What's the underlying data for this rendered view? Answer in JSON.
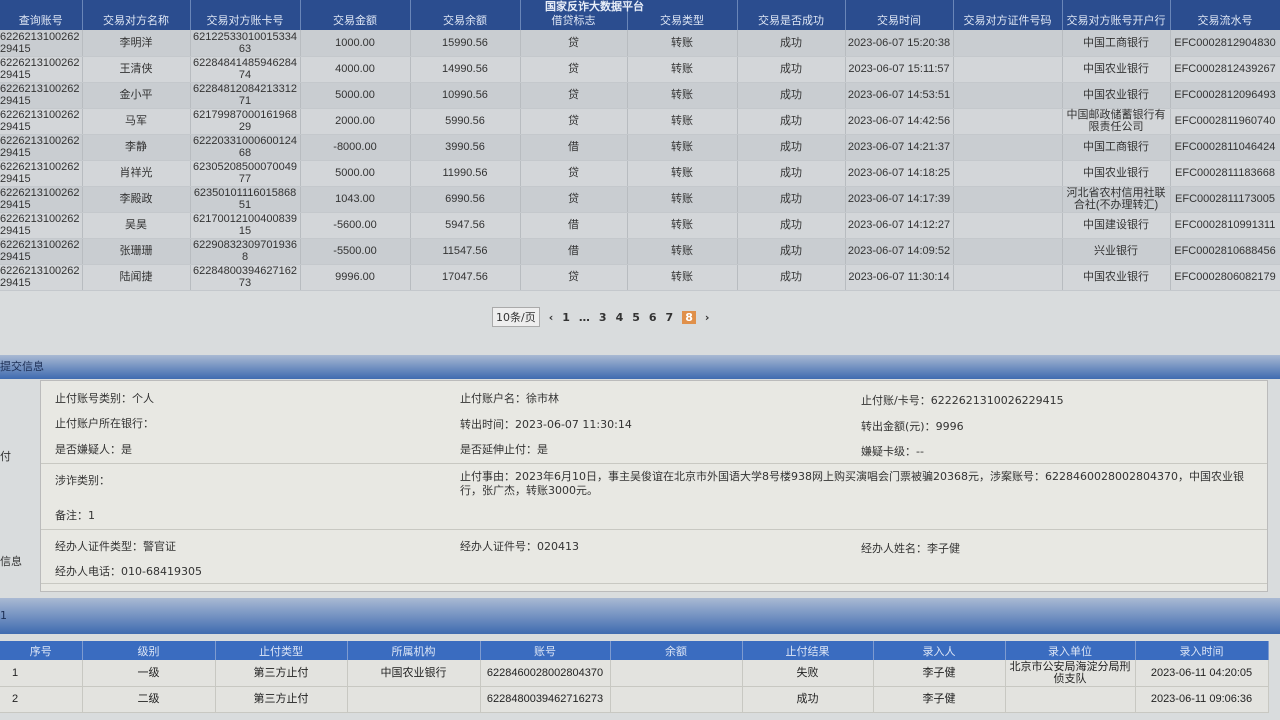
{
  "page_title": "国家反诈大数据平台",
  "tx_table": {
    "headers": [
      "查询账号",
      "交易对方名称",
      "交易对方账卡号",
      "交易金额",
      "交易余额",
      "借贷标志",
      "交易类型",
      "交易是否成功",
      "交易时间",
      "交易对方证件号码",
      "交易对方账号开户行",
      "交易流水号"
    ],
    "rows": [
      [
        "6226213100262 29415",
        "李明洋",
        "6212253301001533463",
        "1000.00",
        "15990.56",
        "贷",
        "转账",
        "成功",
        "2023-06-07 15:20:38",
        "",
        "中国工商银行",
        "EFC0002812904830"
      ],
      [
        "6226213100262 29415",
        "王清侠",
        "6228484148594628474",
        "4000.00",
        "14990.56",
        "贷",
        "转账",
        "成功",
        "2023-06-07 15:11:57",
        "",
        "中国农业银行",
        "EFC0002812439267"
      ],
      [
        "6226213100262 29415",
        "金小平",
        "6228481208421331271",
        "5000.00",
        "10990.56",
        "贷",
        "转账",
        "成功",
        "2023-06-07 14:53:51",
        "",
        "中国农业银行",
        "EFC0002812096493"
      ],
      [
        "6226213100262 29415",
        "马军",
        "6217998700016196829",
        "2000.00",
        "5990.56",
        "贷",
        "转账",
        "成功",
        "2023-06-07 14:42:56",
        "",
        "中国邮政储蓄银行有限责任公司",
        "EFC0002811960740"
      ],
      [
        "6226213100262 29415",
        "李静",
        "6222033100060012468",
        "-8000.00",
        "3990.56",
        "借",
        "转账",
        "成功",
        "2023-06-07 14:21:37",
        "",
        "中国工商银行",
        "EFC0002811046424"
      ],
      [
        "6226213100262 29415",
        "肖祥光",
        "6230520850007004977",
        "5000.00",
        "11990.56",
        "贷",
        "转账",
        "成功",
        "2023-06-07 14:18:25",
        "",
        "中国农业银行",
        "EFC0002811183668"
      ],
      [
        "6226213100262 29415",
        "李殿政",
        "6235010111601586851",
        "1043.00",
        "6990.56",
        "贷",
        "转账",
        "成功",
        "2023-06-07 14:17:39",
        "",
        "河北省农村信用社联合社(不办理转汇)",
        "EFC0002811173005"
      ],
      [
        "6226213100262 29415",
        "吴昊",
        "6217001210040083915",
        "-5600.00",
        "5947.56",
        "借",
        "转账",
        "成功",
        "2023-06-07 14:12:27",
        "",
        "中国建设银行",
        "EFC0002810991311"
      ],
      [
        "6226213100262 29415",
        "张珊珊",
        "622908323097019368",
        "-5500.00",
        "11547.56",
        "借",
        "转账",
        "成功",
        "2023-06-07 14:09:52",
        "",
        "兴业银行",
        "EFC0002810688456"
      ],
      [
        "6226213100262 29415",
        "陆闻捷",
        "6228480039462716273",
        "9996.00",
        "17047.56",
        "贷",
        "转账",
        "成功",
        "2023-06-07 11:30:14",
        "",
        "中国农业银行",
        "EFC0002806082179"
      ]
    ]
  },
  "pager": {
    "page_size": "10条/页",
    "pages": [
      "1",
      "…",
      "3",
      "4",
      "5",
      "6",
      "7",
      "8"
    ],
    "current": "8",
    "prev": "‹",
    "next": "›"
  },
  "info_section": {
    "title": "提交信息",
    "side_labels": [
      "付",
      "信息"
    ],
    "account_type": "止付账号类别：个人",
    "account_name": "止付账户名：徐市林",
    "account_no": "止付账/卡号：6222621310026229415",
    "bank": "止付账户所在银行：",
    "out_time": "转出时间：2023-06-07 11:30:14",
    "out_amount": "转出金额(元)：9996",
    "is_suspect": "是否嫌疑人：是",
    "extend": "是否延伸止付：是",
    "card_level": "嫌疑卡级：--",
    "fraud_type": "涉诈类别：",
    "reason": "止付事由：2023年6月10日，事主吴俊谊在北京市外国语大学8号楼938网上购买演唱会门票被骗20368元，涉案账号：6228460028002804370，中国农业银行，张广杰，转账3000元。",
    "remark": "备注：1",
    "officer_id_type": "经办人证件类型：警官证",
    "officer_id": "经办人证件号：020413",
    "officer_name": "经办人姓名：李子健",
    "officer_phone": "经办人电话：010-68419305"
  },
  "result_section": {
    "title": "1",
    "headers": [
      "序号",
      "级别",
      "止付类型",
      "所属机构",
      "账号",
      "余额",
      "止付结果",
      "录入人",
      "录入单位",
      "录入时间"
    ],
    "rows": [
      [
        "1",
        "一级",
        "第三方止付",
        "中国农业银行",
        "6228460028002804370",
        "",
        "失败",
        "李子健",
        "北京市公安局海淀分局刑侦支队",
        "2023-06-11 04:20:05"
      ],
      [
        "2",
        "二级",
        "第三方止付",
        "",
        "6228480039462716273",
        "",
        "成功",
        "李子健",
        "",
        "2023-06-11 09:06:36"
      ]
    ]
  },
  "colors": {
    "header_blue": "#2b4d8f",
    "current_page": "#e0904a"
  }
}
